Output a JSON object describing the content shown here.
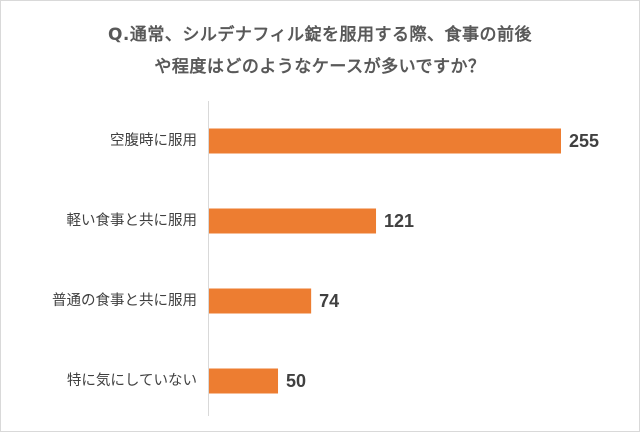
{
  "chart_data": {
    "type": "bar",
    "orientation": "horizontal",
    "title_lines": [
      "Q.通常、シルデナフィル錠を服用する際、食事の前後",
      "や程度はどのようなケースが多いですか？"
    ],
    "categories": [
      "空腹時に服用",
      "軽い食事と共に服用",
      "普通の食事と共に服用",
      "特に気にしていない"
    ],
    "values": [
      255,
      121,
      74,
      50
    ],
    "xlabel": "",
    "ylabel": "",
    "xlim": [
      0,
      255
    ],
    "grid": false,
    "legend": "none",
    "bar_color": "#ed7d31",
    "axis_color": "#d9d9d9",
    "text_color": "#404040"
  }
}
